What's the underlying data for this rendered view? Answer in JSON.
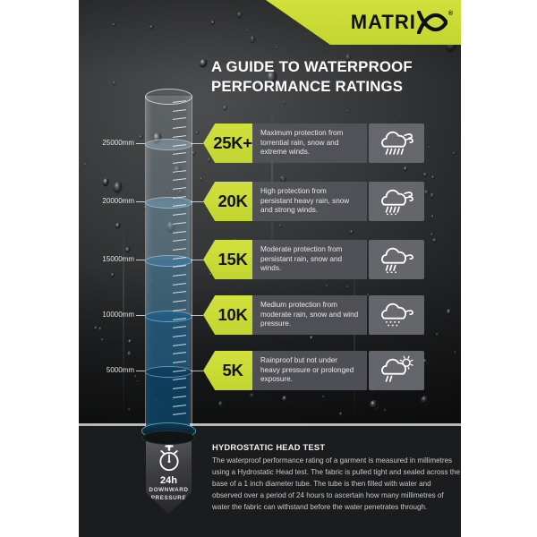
{
  "brand": {
    "logo_text": "MATRI",
    "registered": "®"
  },
  "header": {
    "title_line1": "A GUIDE TO WATERPROOF",
    "title_line2": "PERFORMANCE RATINGS"
  },
  "tube": {
    "levels": [
      {
        "label": "25000mm"
      },
      {
        "label": "20000mm"
      },
      {
        "label": "15000mm"
      },
      {
        "label": "10000mm"
      },
      {
        "label": "5000mm"
      }
    ]
  },
  "ratings": [
    {
      "label": "25K+",
      "description": "Maximum protection from torrential rain, snow and extreme winds.",
      "icon": "storm-rain-wind-icon"
    },
    {
      "label": "20K",
      "description": "High protection from persistant heavy rain, snow and strong winds.",
      "icon": "heavy-rain-wind-icon"
    },
    {
      "label": "15K",
      "description": "Moderate protection from persistant rain, snow and winds.",
      "icon": "rain-wind-icon"
    },
    {
      "label": "10K",
      "description": "Medium protection from moderate rain, snow and wind pressure.",
      "icon": "drizzle-wind-icon"
    },
    {
      "label": "5K",
      "description": "Rainproof but not under heavy pressure or prolonged exposure.",
      "icon": "sun-shower-icon"
    }
  ],
  "footer": {
    "badge": {
      "icon": "stopwatch-icon",
      "duration": "24h",
      "line1": "DOWNWARD",
      "line2": "PRESSURE"
    },
    "heading": "HYDROSTATIC HEAD TEST",
    "body": "The waterproof performance rating of a garment is measured in millimetres using a Hydrostatic Head test. The fabric is pulled tight and sealed across the base of a 1 inch diameter tube. The tube is then filled with water and observed over a period of 24 hours to ascertain how many millimetres of water the fabric can withstand before the water penetrates through."
  },
  "colors": {
    "lime": "#c2d531",
    "lime_light": "#d2e03c",
    "panel_gray": "#535459",
    "icon_panel_gray": "#696a6e",
    "footer_black": "#1b1c1e",
    "water_deep_blue": "#0a4264",
    "water_mid_blue": "#3a7aa3",
    "white": "#ffffff"
  }
}
